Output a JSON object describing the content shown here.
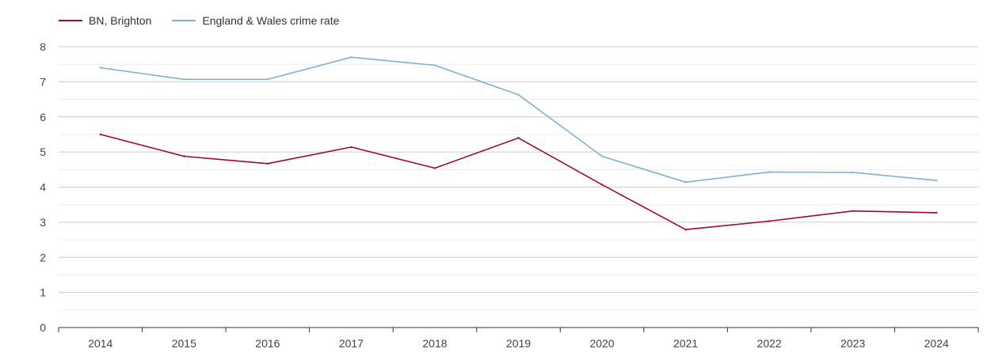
{
  "chart_data": {
    "type": "line",
    "title": "",
    "xlabel": "",
    "ylabel": "",
    "categories": [
      "2014",
      "2015",
      "2016",
      "2017",
      "2018",
      "2019",
      "2020",
      "2021",
      "2022",
      "2023",
      "2024"
    ],
    "ylim": [
      0,
      8
    ],
    "yticks": [
      0,
      1,
      2,
      3,
      4,
      5,
      6,
      7,
      8
    ],
    "grid": true,
    "legend_position": "top-left",
    "series": [
      {
        "name": "BN, Brighton",
        "color": "#a0082c",
        "values": [
          5.5,
          4.88,
          4.67,
          5.14,
          4.54,
          5.4,
          4.07,
          2.79,
          3.03,
          3.32,
          3.27
        ]
      },
      {
        "name": "England & Wales crime rate",
        "color": "#7fb2d0",
        "values": [
          7.4,
          7.07,
          7.07,
          7.7,
          7.47,
          6.63,
          4.88,
          4.14,
          4.43,
          4.42,
          4.19
        ]
      }
    ]
  }
}
